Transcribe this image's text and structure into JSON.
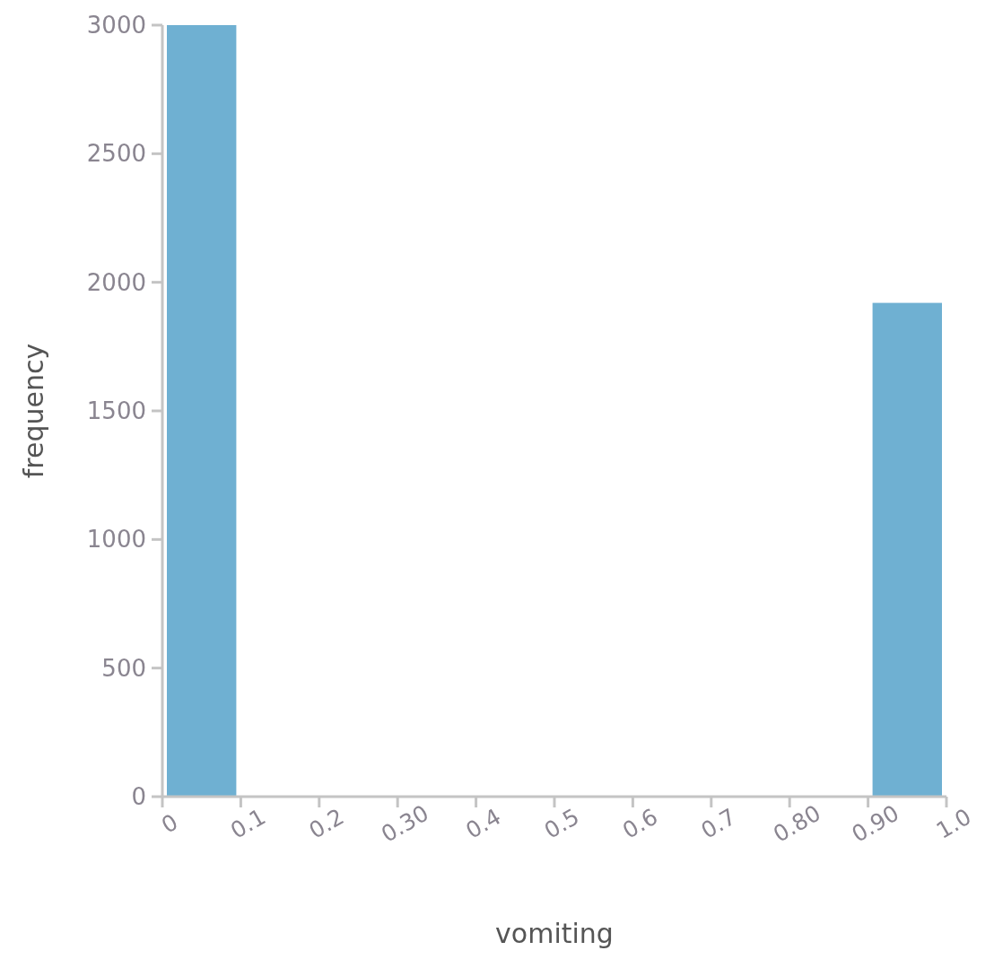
{
  "chart_data": {
    "type": "histogram",
    "xlabel": "vomiting",
    "ylabel": "frequency",
    "bins": [
      0,
      0.1,
      0.2,
      0.3,
      0.4,
      0.5,
      0.6,
      0.7,
      0.8,
      0.9,
      1.0
    ],
    "values": [
      3000,
      0,
      0,
      0,
      0,
      0,
      0,
      0,
      0,
      1920
    ],
    "color": "#6fb0d2",
    "xlim": [
      0,
      1
    ],
    "ylim": [
      0,
      3000
    ],
    "xticks": [
      0,
      0.1,
      0.2,
      {
        "value": 0.3,
        "label": "0.30"
      },
      0.4,
      0.5,
      0.6,
      0.7,
      {
        "value": 0.8,
        "label": "0.80"
      },
      {
        "value": 0.9,
        "label": "0.90"
      },
      {
        "value": 1,
        "label": "1.0"
      }
    ],
    "yticks": [
      0,
      500,
      1000,
      1500,
      2000,
      2500,
      3000
    ],
    "grid": false
  }
}
